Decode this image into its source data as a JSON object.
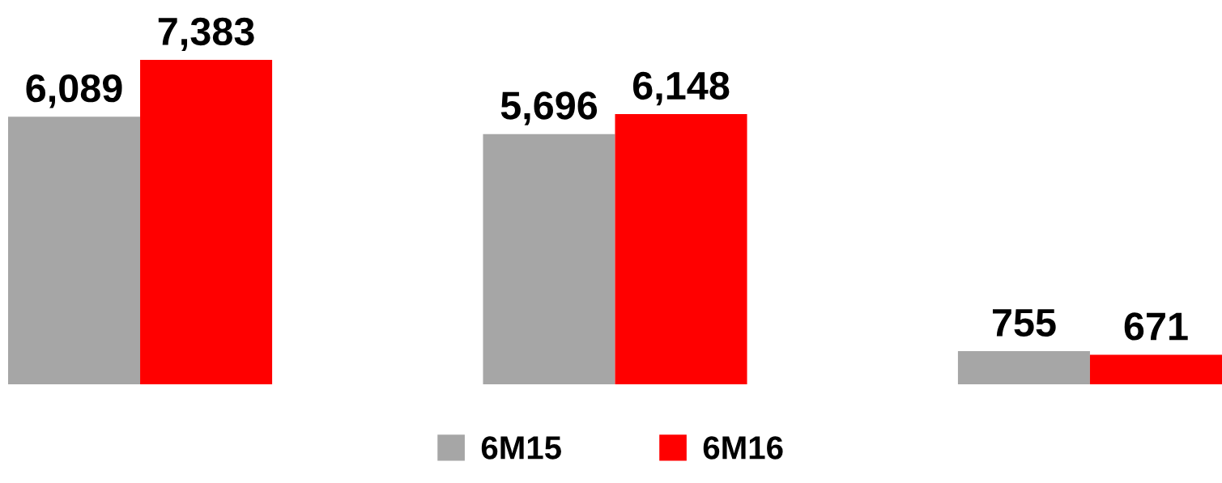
{
  "chart_data": {
    "type": "bar",
    "categories": [
      null,
      null,
      null
    ],
    "series": [
      {
        "name": "6M15",
        "color": "#a6a6a6",
        "values": [
          6089,
          5696,
          755
        ],
        "value_labels": [
          "6,089",
          "5,696",
          "755"
        ]
      },
      {
        "name": "6M16",
        "color": "#ff0000",
        "values": [
          7383,
          6148,
          671
        ],
        "value_labels": [
          "7,383",
          "6,148",
          "671"
        ]
      }
    ],
    "legend": "bottom",
    "grid": false
  }
}
